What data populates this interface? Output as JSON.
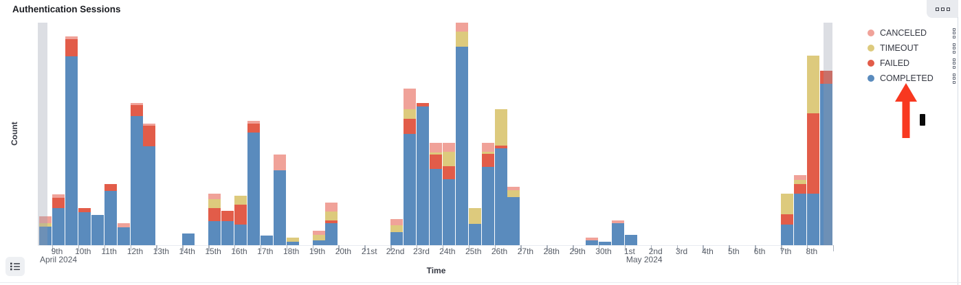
{
  "panel": {
    "title": "Authentication Sessions"
  },
  "toolbar": {
    "panel_options_icon": "boxes-horizontal"
  },
  "legend": {
    "position": "right",
    "toggle_icon": "list",
    "items": [
      {
        "label": "CANCELED",
        "key": "canceled",
        "color": "#f0a299"
      },
      {
        "label": "TIMEOUT",
        "key": "timeout",
        "color": "#ddca7d"
      },
      {
        "label": "FAILED",
        "key": "failed",
        "color": "#e25c49"
      },
      {
        "label": "COMPLETED",
        "key": "completed",
        "color": "#5a8bbd"
      }
    ]
  },
  "axes": {
    "x_title": "Time",
    "y_title": "Count"
  },
  "annotations": {
    "arrow_color": "#f83820",
    "arrow_points_to": "COMPLETED legend item"
  },
  "chart_data": {
    "type": "bar",
    "stacked": true,
    "title": "Authentication Sessions",
    "xlabel": "Time",
    "ylabel": "Count",
    "grid": false,
    "legend_position": "right",
    "y_tick_labels_visible": false,
    "value_scale": "relative estimate (y-axis has no numeric ticks)",
    "ylim": [
      0,
      330
    ],
    "bucket_interval": "12h",
    "stack_order_bottom_to_top": [
      "completed",
      "failed",
      "timeout",
      "canceled"
    ],
    "colors": {
      "completed": "#5a8bbd",
      "failed": "#e25c49",
      "timeout": "#ddca7d",
      "canceled": "#f0a299"
    },
    "day_labels": [
      "9th",
      "10th",
      "11th",
      "12th",
      "13th",
      "14th",
      "15th",
      "16th",
      "17th",
      "18th",
      "19th",
      "20th",
      "21st",
      "22nd",
      "23rd",
      "24th",
      "25th",
      "26th",
      "27th",
      "28th",
      "29th",
      "30th",
      "1st",
      "2nd",
      "3rd",
      "4th",
      "5th",
      "6th",
      "7th",
      "8th"
    ],
    "month_labels": [
      {
        "text": "April 2024",
        "day_index": 0
      },
      {
        "text": "May 2024",
        "day_index": 22
      }
    ],
    "buckets": [
      {
        "t": "Apr 8 12:00",
        "slot": 0,
        "completed": 27,
        "failed": 0,
        "timeout": 5,
        "canceled": 10,
        "partial": true
      },
      {
        "t": "Apr 9 00:00",
        "slot": 1,
        "completed": 54,
        "failed": 15,
        "timeout": 0,
        "canceled": 5
      },
      {
        "t": "Apr 9 12:00",
        "slot": 2,
        "completed": 275,
        "failed": 25,
        "timeout": 0,
        "canceled": 4
      },
      {
        "t": "Apr 10 00:00",
        "slot": 3,
        "completed": 48,
        "failed": 6,
        "timeout": 0,
        "canceled": 0
      },
      {
        "t": "Apr 10 12:00",
        "slot": 4,
        "completed": 44,
        "failed": 0,
        "timeout": 0,
        "canceled": 0
      },
      {
        "t": "Apr 11 00:00",
        "slot": 5,
        "completed": 79,
        "failed": 10,
        "timeout": 0,
        "canceled": 0
      },
      {
        "t": "Apr 11 12:00",
        "slot": 6,
        "completed": 26,
        "failed": 0,
        "timeout": 0,
        "canceled": 6
      },
      {
        "t": "Apr 12 00:00",
        "slot": 7,
        "completed": 188,
        "failed": 16,
        "timeout": 0,
        "canceled": 3
      },
      {
        "t": "Apr 12 12:00",
        "slot": 8,
        "completed": 144,
        "failed": 30,
        "timeout": 0,
        "canceled": 3
      },
      {
        "t": "Apr 14 00:00",
        "slot": 11,
        "completed": 17,
        "failed": 0,
        "timeout": 0,
        "canceled": 0
      },
      {
        "t": "Apr 15 00:00",
        "slot": 13,
        "completed": 35,
        "failed": 19,
        "timeout": 13,
        "canceled": 8
      },
      {
        "t": "Apr 15 12:00",
        "slot": 14,
        "completed": 35,
        "failed": 15,
        "timeout": 0,
        "canceled": 0
      },
      {
        "t": "Apr 16 00:00",
        "slot": 15,
        "completed": 30,
        "failed": 29,
        "timeout": 13,
        "canceled": 0
      },
      {
        "t": "Apr 16 12:00",
        "slot": 16,
        "completed": 164,
        "failed": 13,
        "timeout": 0,
        "canceled": 4
      },
      {
        "t": "Apr 17 00:00",
        "slot": 17,
        "completed": 14,
        "failed": 0,
        "timeout": 0,
        "canceled": 0
      },
      {
        "t": "Apr 17 12:00",
        "slot": 18,
        "completed": 109,
        "failed": 0,
        "timeout": 0,
        "canceled": 23
      },
      {
        "t": "Apr 18 00:00",
        "slot": 19,
        "completed": 5,
        "failed": 0,
        "timeout": 6,
        "canceled": 0
      },
      {
        "t": "Apr 19 00:00",
        "slot": 21,
        "completed": 7,
        "failed": 0,
        "timeout": 8,
        "canceled": 6
      },
      {
        "t": "Apr 19 12:00",
        "slot": 22,
        "completed": 32,
        "failed": 4,
        "timeout": 13,
        "canceled": 13
      },
      {
        "t": "Apr 22 00:00",
        "slot": 27,
        "completed": 19,
        "failed": 0,
        "timeout": 10,
        "canceled": 9
      },
      {
        "t": "Apr 22 12:00",
        "slot": 28,
        "completed": 162,
        "failed": 22,
        "timeout": 14,
        "canceled": 30
      },
      {
        "t": "Apr 23 00:00",
        "slot": 29,
        "completed": 202,
        "failed": 5,
        "timeout": 0,
        "canceled": 0
      },
      {
        "t": "Apr 23 12:00",
        "slot": 30,
        "completed": 111,
        "failed": 21,
        "timeout": 3,
        "canceled": 14
      },
      {
        "t": "Apr 24 00:00",
        "slot": 31,
        "completed": 96,
        "failed": 19,
        "timeout": 21,
        "canceled": 13
      },
      {
        "t": "Apr 24 12:00",
        "slot": 32,
        "completed": 289,
        "failed": 0,
        "timeout": 22,
        "canceled": 13
      },
      {
        "t": "Apr 25 00:00",
        "slot": 33,
        "completed": 31,
        "failed": 0,
        "timeout": 23,
        "canceled": 0
      },
      {
        "t": "Apr 25 12:00",
        "slot": 34,
        "completed": 114,
        "failed": 19,
        "timeout": 3,
        "canceled": 13
      },
      {
        "t": "Apr 26 00:00",
        "slot": 35,
        "completed": 141,
        "failed": 4,
        "timeout": 53,
        "canceled": 0
      },
      {
        "t": "Apr 26 12:00",
        "slot": 36,
        "completed": 70,
        "failed": 0,
        "timeout": 10,
        "canceled": 5
      },
      {
        "t": "Apr 29 12:00",
        "slot": 42,
        "completed": 7,
        "failed": 0,
        "timeout": 0,
        "canceled": 4
      },
      {
        "t": "Apr 30 00:00",
        "slot": 43,
        "completed": 5,
        "failed": 0,
        "timeout": 0,
        "canceled": 0
      },
      {
        "t": "Apr 30 12:00",
        "slot": 44,
        "completed": 32,
        "failed": 0,
        "timeout": 0,
        "canceled": 4
      },
      {
        "t": "May 1 00:00",
        "slot": 45,
        "completed": 15,
        "failed": 0,
        "timeout": 0,
        "canceled": 0
      },
      {
        "t": "May 7 00:00",
        "slot": 57,
        "completed": 30,
        "failed": 15,
        "timeout": 30,
        "canceled": 0
      },
      {
        "t": "May 7 12:00",
        "slot": 58,
        "completed": 75,
        "failed": 14,
        "timeout": 6,
        "canceled": 7
      },
      {
        "t": "May 8 00:00",
        "slot": 59,
        "completed": 75,
        "failed": 117,
        "timeout": 84,
        "canceled": 0
      },
      {
        "t": "May 8 12:00",
        "slot": 60,
        "completed": 235,
        "failed": 19,
        "timeout": 0,
        "canceled": 0,
        "partial": true
      }
    ]
  }
}
